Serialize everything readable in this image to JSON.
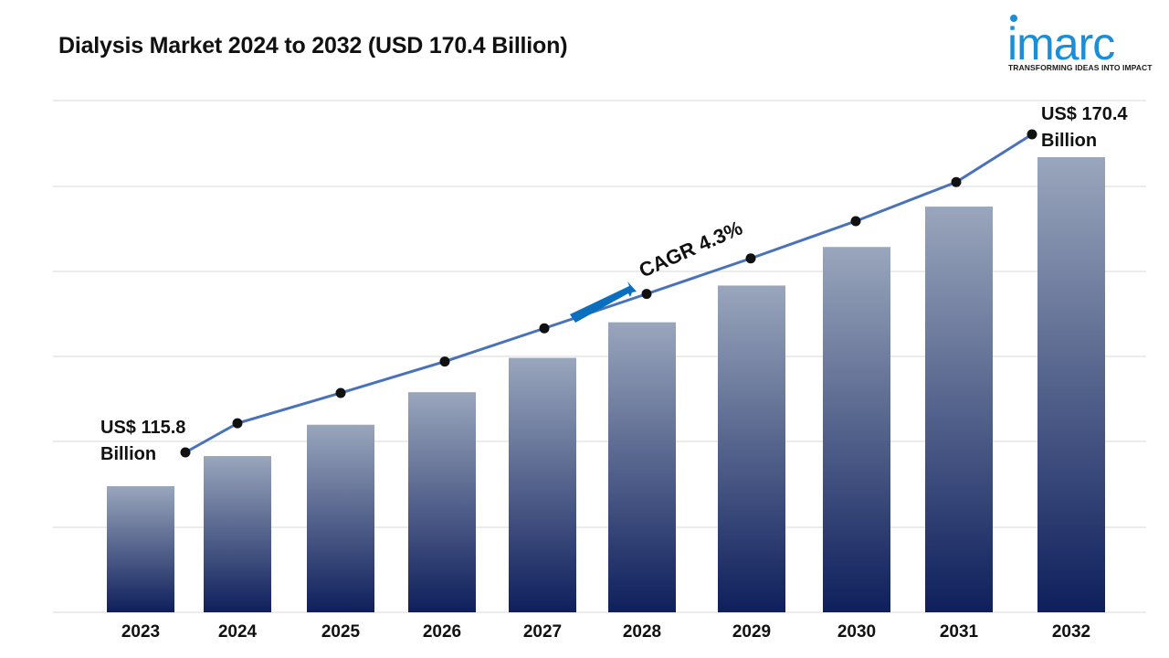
{
  "title": "Dialysis Market 2024 to 2032 (USD 170.4 Billion)",
  "logo": {
    "brand": "imarc",
    "tagline": "TRANSFORMING IDEAS INTO IMPACT"
  },
  "colors": {
    "brand_blue": "#1a8fd8",
    "line": "#4a72b8",
    "bar_top": "#9aa6bc",
    "bar_bottom": "#0e1f5c",
    "arrow": "#0a6fbf"
  },
  "chart_data": {
    "type": "bar",
    "categories": [
      "2023",
      "2024",
      "2025",
      "2026",
      "2027",
      "2028",
      "2029",
      "2030",
      "2031",
      "2032"
    ],
    "series": [
      {
        "type": "bar",
        "values": [
          115.8,
          120.8,
          126.0,
          131.4,
          137.1,
          143.0,
          149.1,
          155.5,
          162.2,
          170.4
        ]
      },
      {
        "type": "line",
        "values": [
          115.8,
          120.8,
          126.0,
          131.4,
          137.1,
          143.0,
          149.1,
          155.5,
          162.2,
          170.4
        ]
      }
    ],
    "annotations": {
      "start_line1": "US$ 115.8",
      "start_line2": "Billion",
      "end_line1": "US$ 170.4",
      "end_line2": "Billion",
      "cagr": "CAGR 4.3%"
    },
    "grid": true,
    "legend": "none"
  }
}
